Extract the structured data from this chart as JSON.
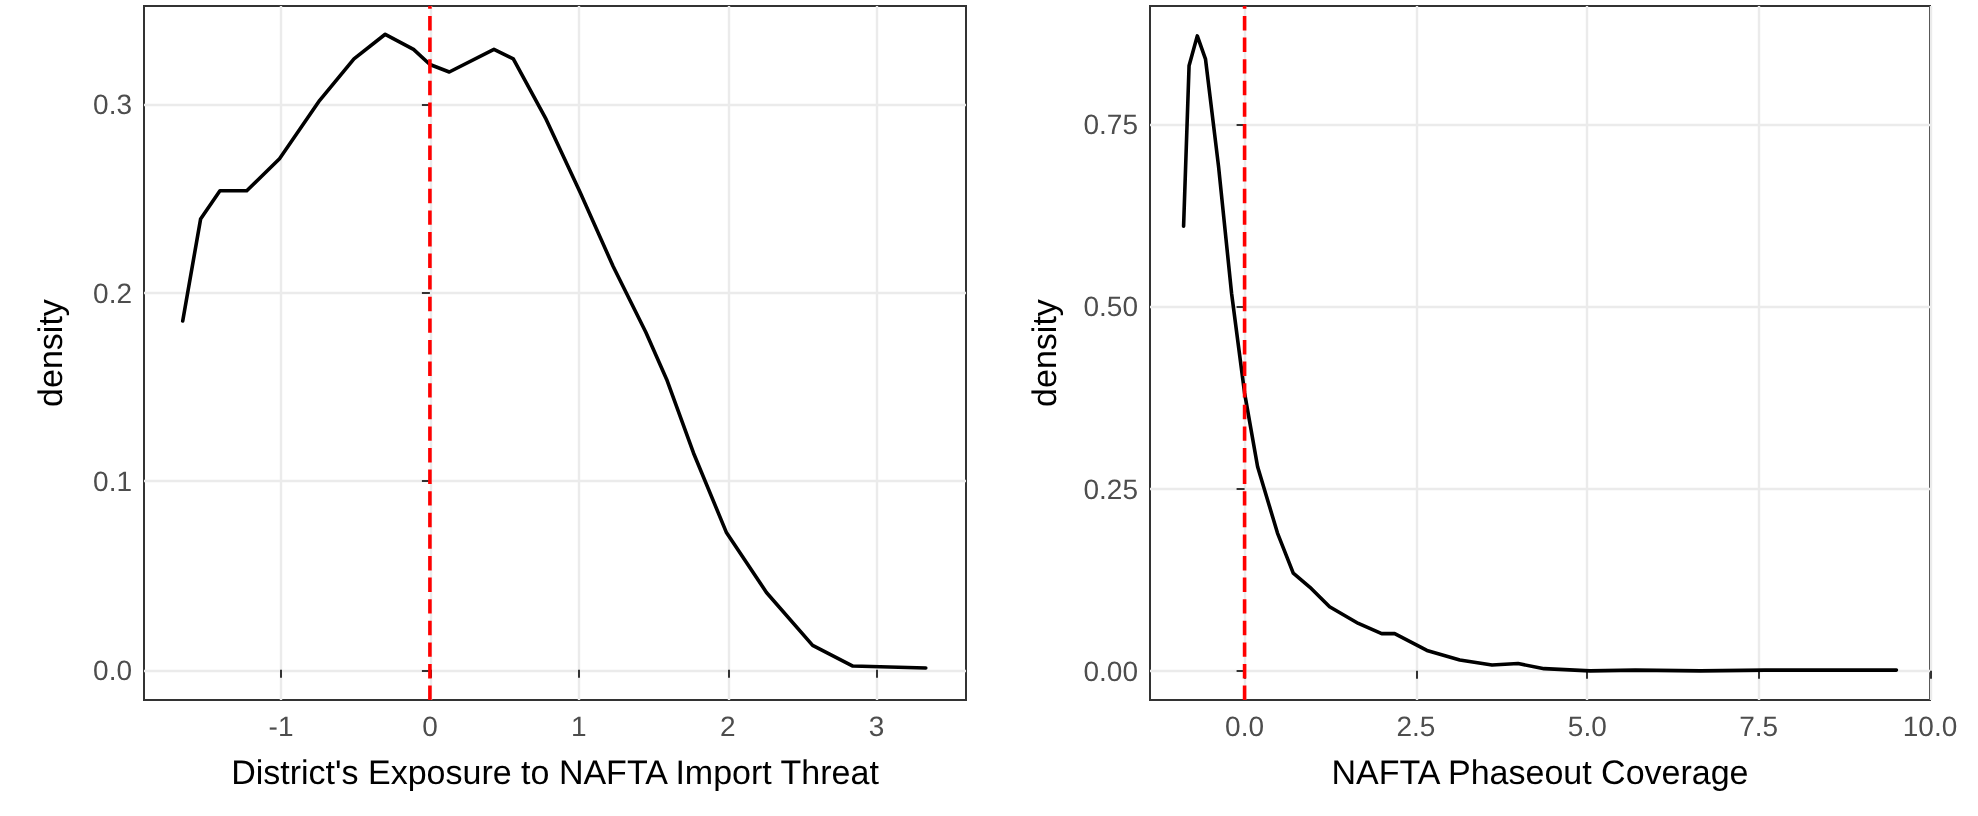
{
  "chart_data": [
    {
      "type": "line",
      "xlabel": "District's Exposure to NAFTA Import Threat",
      "ylabel": "density",
      "grid": true,
      "marker": "none",
      "line_style": "solid",
      "xlim": [
        -1.92,
        3.6
      ],
      "ylim": [
        -0.016,
        0.352
      ],
      "xticks": [
        -1,
        0,
        1,
        2,
        3
      ],
      "yticks": [
        {
          "value": 0,
          "label": "0.0"
        },
        {
          "value": 0.1,
          "label": "0.1"
        },
        {
          "value": 0.2,
          "label": "0.2"
        },
        {
          "value": 0.3,
          "label": "0.3"
        }
      ],
      "ref_lines": [
        {
          "axis": "x",
          "value": 0,
          "color": "#ff0000",
          "line_style": "dashed"
        }
      ],
      "series": [
        {
          "color": "#000000",
          "x": [
            -1.66,
            -1.54,
            -1.41,
            -1.23,
            -1.01,
            -0.74,
            -0.51,
            -0.3,
            -0.11,
            0,
            0.13,
            0.43,
            0.56,
            0.78,
            1.01,
            1.23,
            1.45,
            1.59,
            1.77,
            1.99,
            2.26,
            2.57,
            2.84,
            3.33
          ],
          "values": [
            0.185,
            0.239,
            0.254,
            0.254,
            0.271,
            0.302,
            0.324,
            0.337,
            0.329,
            0.321,
            0.317,
            0.329,
            0.324,
            0.292,
            0.253,
            0.214,
            0.179,
            0.154,
            0.115,
            0.073,
            0.041,
            0.013,
            0.002,
            0.001
          ]
        }
      ]
    },
    {
      "type": "line",
      "xlabel": "NAFTA Phaseout Coverage",
      "ylabel": "density",
      "grid": true,
      "marker": "none",
      "line_style": "solid",
      "xlim": [
        -1.38,
        10
      ],
      "ylim": [
        -0.04,
        0.912
      ],
      "xticks": [
        {
          "value": 0,
          "label": "0.0"
        },
        {
          "value": 2.5,
          "label": "2.5"
        },
        {
          "value": 5,
          "label": "5.0"
        },
        {
          "value": 7.5,
          "label": "7.5"
        },
        {
          "value": 10,
          "label": "10.0"
        }
      ],
      "yticks": [
        {
          "value": 0,
          "label": "0.00"
        },
        {
          "value": 0.25,
          "label": "0.25"
        },
        {
          "value": 0.5,
          "label": "0.50"
        },
        {
          "value": 0.75,
          "label": "0.75"
        }
      ],
      "ref_lines": [
        {
          "axis": "x",
          "value": 0,
          "color": "#ff0000",
          "line_style": "dashed"
        }
      ],
      "series": [
        {
          "color": "#000000",
          "x": [
            -0.89,
            -0.81,
            -0.69,
            -0.57,
            -0.38,
            -0.19,
            0,
            0.19,
            0.48,
            0.71,
            0.95,
            1.24,
            1.66,
            2.0,
            2.19,
            2.66,
            3.14,
            3.61,
            3.99,
            4.37,
            5.04,
            5.7,
            6.65,
            7.6,
            9.51
          ],
          "values": [
            0.61,
            0.83,
            0.871,
            0.839,
            0.692,
            0.518,
            0.381,
            0.28,
            0.189,
            0.134,
            0.115,
            0.088,
            0.065,
            0.051,
            0.051,
            0.028,
            0.015,
            0.008,
            0.01,
            0.003,
            0,
            0.001,
            0,
            0.001,
            0.001
          ]
        }
      ]
    }
  ]
}
